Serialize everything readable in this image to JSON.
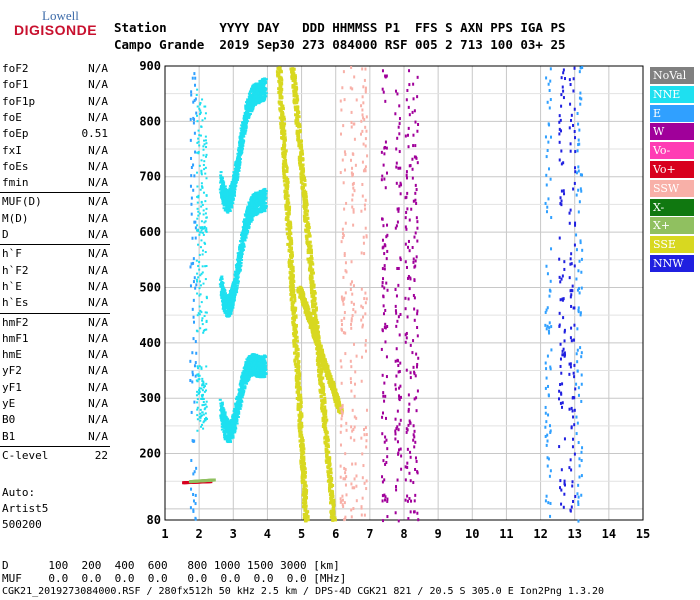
{
  "logo": {
    "line1": "Lowell",
    "line2": "DIGISONDE"
  },
  "header": {
    "row1": "Station       YYYY DAY   DDD HHMMSS P1  FFS S AXN PPS IGA PS",
    "row2": "Campo Grande  2019 Sep30 273 084000 RSF 005 2 713 100 03+ 25"
  },
  "params": [
    {
      "group": [
        {
          "name": "foF2",
          "value": "N/A"
        },
        {
          "name": "foF1",
          "value": "N/A"
        },
        {
          "name": "foF1p",
          "value": "N/A"
        },
        {
          "name": "foE",
          "value": "N/A"
        },
        {
          "name": "foEp",
          "value": "0.51"
        },
        {
          "name": "fxI",
          "value": "N/A"
        },
        {
          "name": "foEs",
          "value": "N/A"
        },
        {
          "name": "fmin",
          "value": "N/A"
        }
      ]
    },
    {
      "group": [
        {
          "name": "MUF(D)",
          "value": "N/A"
        },
        {
          "name": "M(D)",
          "value": "N/A"
        },
        {
          "name": "D",
          "value": "N/A"
        }
      ]
    },
    {
      "group": [
        {
          "name": "h`F",
          "value": "N/A"
        },
        {
          "name": "h`F2",
          "value": "N/A"
        },
        {
          "name": "h`E",
          "value": "N/A"
        },
        {
          "name": "h`Es",
          "value": "N/A"
        }
      ]
    },
    {
      "group": [
        {
          "name": "hmF2",
          "value": "N/A"
        },
        {
          "name": "hmF1",
          "value": "N/A"
        },
        {
          "name": "hmE",
          "value": "N/A"
        },
        {
          "name": "yF2",
          "value": "N/A"
        },
        {
          "name": "yF1",
          "value": "N/A"
        },
        {
          "name": "yE",
          "value": "N/A"
        },
        {
          "name": "B0",
          "value": "N/A"
        },
        {
          "name": "B1",
          "value": "N/A"
        }
      ]
    },
    {
      "group": [
        {
          "name": "C-level",
          "value": "22"
        }
      ]
    }
  ],
  "auto": {
    "line1": "Auto:",
    "line2": "Artist5",
    "line3": "500200"
  },
  "legend": [
    {
      "label": "NoVal",
      "bg": "#808080",
      "fg": "#ffffff"
    },
    {
      "label": "NNE",
      "bg": "#1ee0f0",
      "fg": "#ffffff"
    },
    {
      "label": "E",
      "bg": "#30a0ff",
      "fg": "#ffffff"
    },
    {
      "label": "W",
      "bg": "#a0009a",
      "fg": "#ffffff"
    },
    {
      "label": "Vo-",
      "bg": "#ff3cb4",
      "fg": "#ffffff"
    },
    {
      "label": "Vo+",
      "bg": "#d8001e",
      "fg": "#ffffff"
    },
    {
      "label": "SSW",
      "bg": "#f8b0a8",
      "fg": "#ffffff"
    },
    {
      "label": "X-",
      "bg": "#107810",
      "fg": "#ffffff"
    },
    {
      "label": "X+",
      "bg": "#90c060",
      "fg": "#ffffff"
    },
    {
      "label": "SSE",
      "bg": "#d8d820",
      "fg": "#ffffff"
    },
    {
      "label": "NNW",
      "bg": "#2020e0",
      "fg": "#ffffff"
    }
  ],
  "chart_data": {
    "type": "scatter",
    "x_ticks": [
      "1",
      "2",
      "3",
      "4",
      "5",
      "6",
      "7",
      "8",
      "9",
      "10",
      "11",
      "12",
      "13",
      "14",
      "15"
    ],
    "y_ticks": [
      "80",
      "200",
      "300",
      "400",
      "500",
      "600",
      "700",
      "800",
      "900"
    ],
    "xlim": [
      1,
      15
    ],
    "ylim": [
      80,
      900
    ],
    "series": [
      {
        "name": "NNE",
        "color": "#1ee0f0",
        "trace": "bumps",
        "bumps": [
          [
            2.6,
            3.9,
            240,
            360
          ],
          [
            2.6,
            3.9,
            420,
            660
          ],
          [
            2.6,
            3.9,
            600,
            860
          ]
        ]
      },
      {
        "name": "SSE",
        "color": "#d8d820",
        "trace": "bands",
        "bands": [
          [
            4.3,
            5.1,
            900,
            80
          ],
          [
            4.7,
            5.9,
            900,
            80
          ],
          [
            4.9,
            6.1,
            500,
            280
          ]
        ]
      },
      {
        "name": "SSW",
        "color": "#f8b0a8",
        "trace": "columns",
        "columns": [
          6.2,
          6.5,
          6.8
        ]
      },
      {
        "name": "W",
        "color": "#a0009a",
        "trace": "columns",
        "columns": [
          7.4,
          7.8,
          8.1,
          8.3
        ]
      },
      {
        "name": "NNW",
        "color": "#2020e0",
        "trace": "columns",
        "columns": [
          12.6,
          12.9
        ]
      },
      {
        "name": "E",
        "color": "#30a0ff",
        "trace": "columns",
        "columns": [
          1.8,
          12.2,
          13.1
        ]
      },
      {
        "name": "Vo+",
        "color": "#d8001e",
        "trace": "line",
        "line": [
          [
            1.5,
            150
          ],
          [
            2.3,
            152
          ]
        ]
      },
      {
        "name": "X+",
        "color": "#90c060",
        "trace": "line",
        "line": [
          [
            1.7,
            152
          ],
          [
            2.4,
            155
          ]
        ]
      }
    ]
  },
  "bottom": {
    "row1": "D      100  200  400  600   800 1000 1500 3000 [km]",
    "row2": "MUF    0.0  0.0  0.0  0.0   0.0  0.0  0.0  0.0 [MHz]",
    "row3": "CGK21_2019273084000.RSF / 280fx512h 50 kHz 2.5 km / DPS-4D CGK21 821 / 20.5 S 305.0 E Ion2Png 1.3.20"
  }
}
